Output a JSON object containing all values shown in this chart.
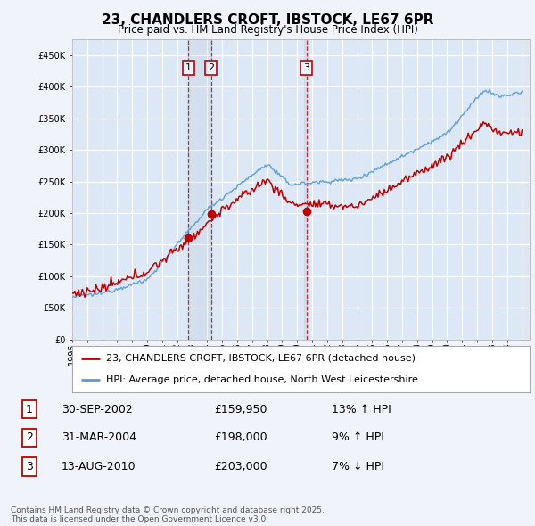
{
  "title": "23, CHANDLERS CROFT, IBSTOCK, LE67 6PR",
  "subtitle": "Price paid vs. HM Land Registry's House Price Index (HPI)",
  "ylim": [
    0,
    475000
  ],
  "yticks": [
    0,
    50000,
    100000,
    150000,
    200000,
    250000,
    300000,
    350000,
    400000,
    450000
  ],
  "ytick_labels": [
    "£0",
    "£50K",
    "£100K",
    "£150K",
    "£200K",
    "£250K",
    "£300K",
    "£350K",
    "£400K",
    "£450K"
  ],
  "hpi_color": "#5b9bd5",
  "price_color": "#c00000",
  "sale1_date": "30-SEP-2002",
  "sale1_price": 159950,
  "sale1_hpi": "13% ↑ HPI",
  "sale1_year": 2002.75,
  "sale2_date": "31-MAR-2004",
  "sale2_price": 198000,
  "sale2_hpi": "9% ↑ HPI",
  "sale2_year": 2004.25,
  "sale3_date": "13-AUG-2010",
  "sale3_price": 203000,
  "sale3_hpi": "7% ↓ HPI",
  "sale3_year": 2010.62,
  "legend_label1": "23, CHANDLERS CROFT, IBSTOCK, LE67 6PR (detached house)",
  "legend_label2": "HPI: Average price, detached house, North West Leicestershire",
  "footnote": "Contains HM Land Registry data © Crown copyright and database right 2025.\nThis data is licensed under the Open Government Licence v3.0.",
  "bg_color": "#f0f4fa",
  "fig_bg": "#f0f4fa",
  "plot_bg": "#dce8f5"
}
